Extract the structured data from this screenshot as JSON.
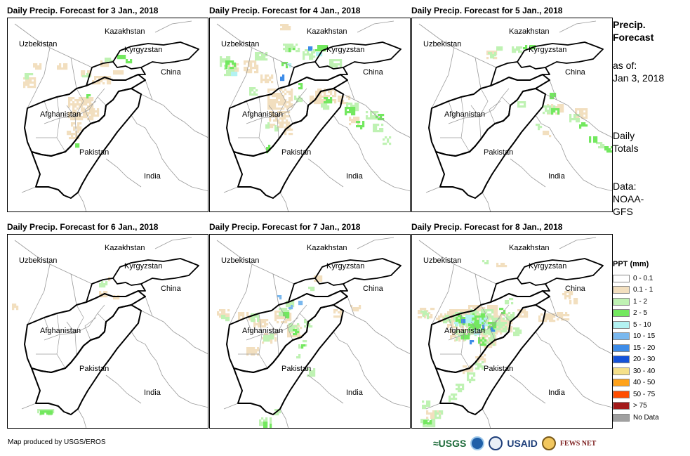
{
  "panels": [
    {
      "title": "Daily Precip. Forecast for 3 Jan., 2018"
    },
    {
      "title": "Daily Precip. Forecast for 4 Jan., 2018"
    },
    {
      "title": "Daily Precip. Forecast for 5 Jan., 2018"
    },
    {
      "title": "Daily Precip. Forecast for 6 Jan., 2018"
    },
    {
      "title": "Daily Precip. Forecast for 7 Jan., 2018"
    },
    {
      "title": "Daily Precip. Forecast for 8 Jan., 2018"
    }
  ],
  "map_labels": {
    "kazakhstan": "Kazakhstan",
    "uzbekistan": "Uzbekistan",
    "kyrgyzstan": "Kyrgyzstan",
    "china": "China",
    "afghanistan": "Afghanistan",
    "pakistan": "Pakistan",
    "india": "India"
  },
  "side": {
    "title_line1": "Precip.",
    "title_line2": "Forecast",
    "asof_line1": "as of:",
    "asof_line2": "Jan 3, 2018",
    "totals_line1": "Daily",
    "totals_line2": "Totals",
    "data_line1": "Data:",
    "data_line2": "NOAA-",
    "data_line3": "GFS"
  },
  "legend": {
    "title": "PPT (mm)",
    "items": [
      {
        "label": "0 - 0.1",
        "color": "#ffffff"
      },
      {
        "label": "0.1 - 1",
        "color": "#f2dfbf"
      },
      {
        "label": "1 - 2",
        "color": "#bff2b3"
      },
      {
        "label": "2 - 5",
        "color": "#73e85f"
      },
      {
        "label": "5 - 10",
        "color": "#b3f2f2"
      },
      {
        "label": "10 - 15",
        "color": "#7ab8ee"
      },
      {
        "label": "15 - 20",
        "color": "#3d8ce8"
      },
      {
        "label": "20 - 30",
        "color": "#1452d9"
      },
      {
        "label": "30 - 40",
        "color": "#f5e08a"
      },
      {
        "label": "40 - 50",
        "color": "#ffa21a"
      },
      {
        "label": "50 - 75",
        "color": "#ff4d00"
      },
      {
        "label": "> 75",
        "color": "#a31a1a"
      },
      {
        "label": "No Data",
        "color": "#a0a0a0"
      }
    ]
  },
  "credit": "Map produced by USGS/EROS",
  "logos": {
    "usgs": "≈USGS",
    "usaid": "USAID",
    "fews": "FEWS NET"
  }
}
